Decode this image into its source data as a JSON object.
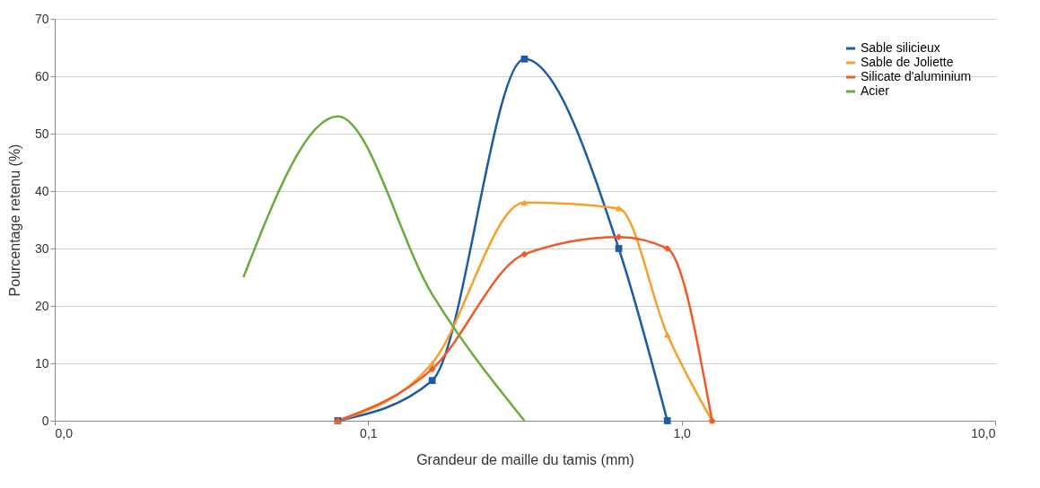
{
  "chart_data": {
    "type": "line",
    "xlabel": "Grandeur de maille du tamis (mm)",
    "ylabel": "Pourcentage retenu (%)",
    "log": "x",
    "xlim": [
      0.01,
      10
    ],
    "xticks": [
      {
        "value": 0.01,
        "label": "0,0"
      },
      {
        "value": 0.1,
        "label": "0,1"
      },
      {
        "value": 1,
        "label": "1,0"
      },
      {
        "value": 10,
        "label": "10,0"
      }
    ],
    "ylim": [
      0,
      70
    ],
    "yticks": [
      0,
      10,
      20,
      30,
      40,
      50,
      60,
      70
    ],
    "grid": "y",
    "legend": "top right",
    "series": [
      {
        "name": "Sable silicieux",
        "color": "#1f5aa6",
        "marker": "square",
        "x": [
          0.08,
          0.16,
          0.315,
          0.63,
          0.9
        ],
        "values": [
          0,
          7,
          63,
          30,
          0
        ]
      },
      {
        "name": "Sable de Joliette",
        "color": "#f5a02a",
        "marker": "triangle",
        "x": [
          0.08,
          0.16,
          0.315,
          0.63,
          0.9,
          1.25
        ],
        "values": [
          0,
          10,
          38,
          37,
          15,
          0
        ]
      },
      {
        "name": "Silicate d'aluminium",
        "color": "#f05a28",
        "marker": "diamond",
        "x": [
          0.08,
          0.16,
          0.315,
          0.63,
          0.9,
          1.25
        ],
        "values": [
          0,
          9,
          29,
          32,
          30,
          0
        ]
      },
      {
        "name": "Acier",
        "color": "#6aab3a",
        "marker": "none",
        "x": [
          0.04,
          0.08,
          0.16,
          0.315
        ],
        "values": [
          25,
          53,
          22,
          0
        ]
      }
    ]
  }
}
